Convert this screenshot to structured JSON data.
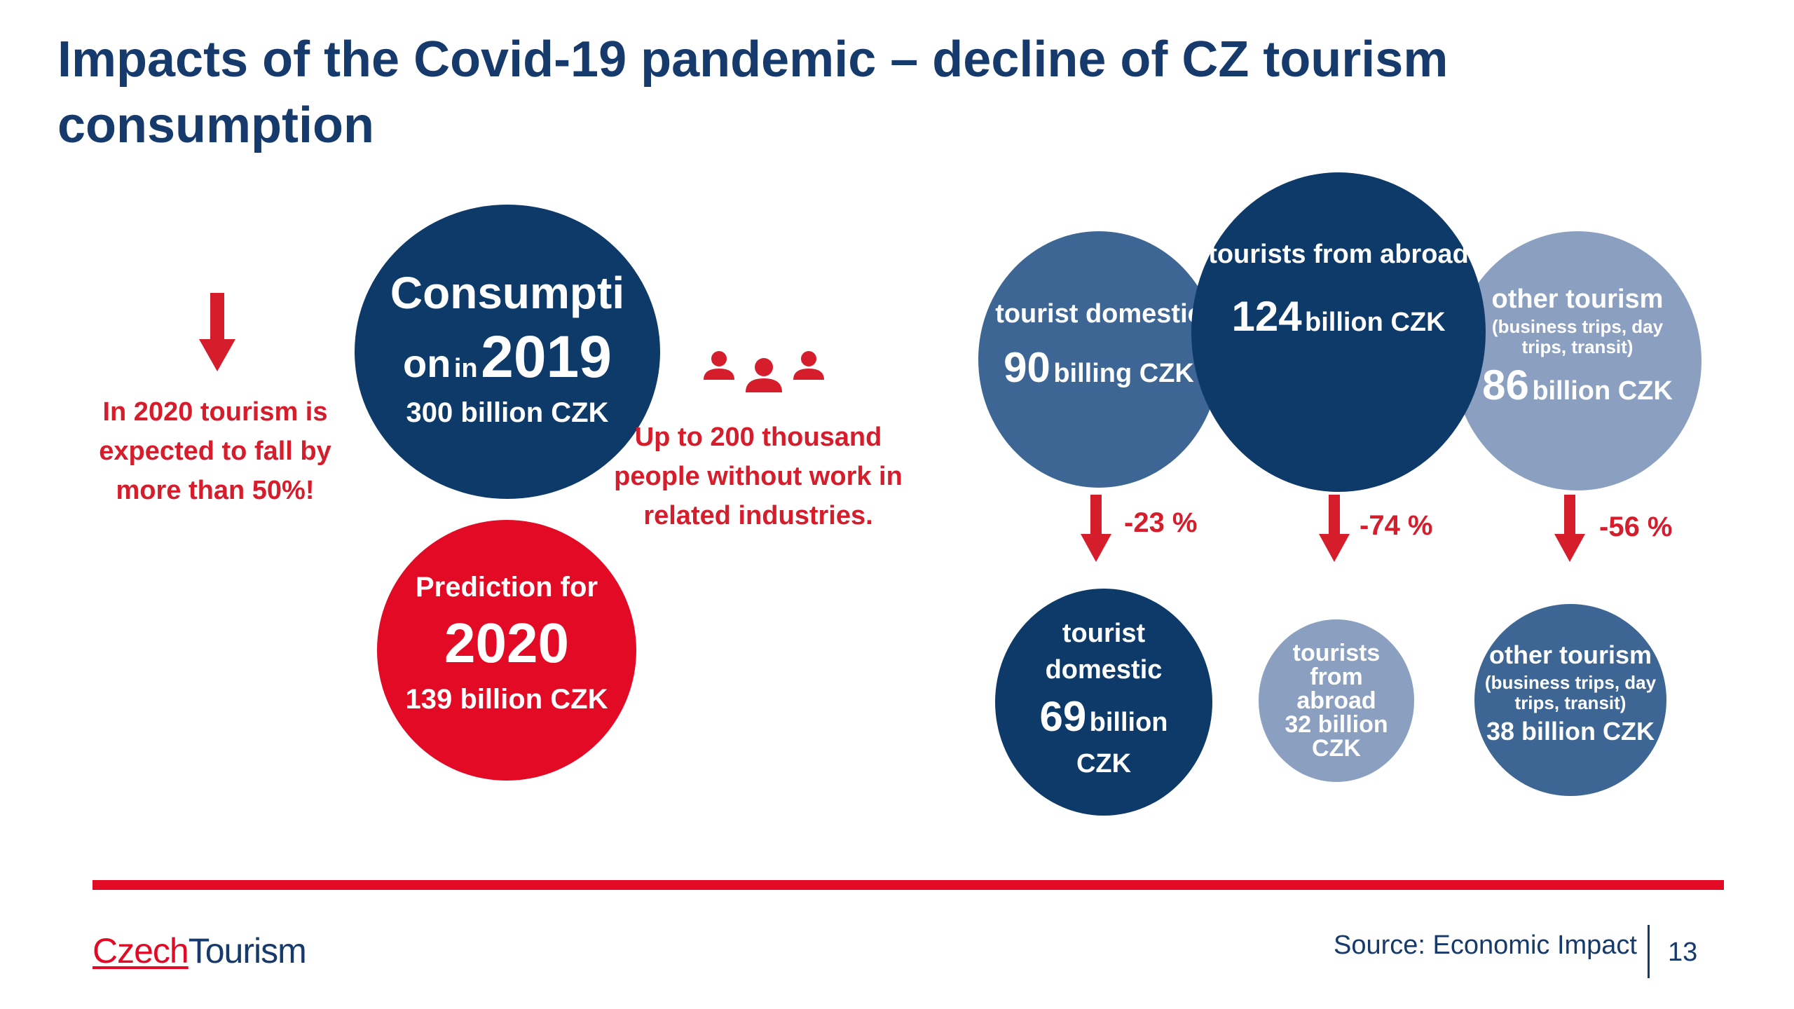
{
  "title": "Impacts of the Covid-19 pandemic – decline of CZ tourism consumption",
  "left": {
    "warning": "In 2020 tourism is expected to fall by more than 50%!",
    "consumption_circle": {
      "line1": "Consumpti",
      "line2_word": "on",
      "line2_in": "in",
      "line2_year": "2019",
      "amount": "300 billion CZK"
    },
    "prediction_circle": {
      "label": "Prediction for",
      "year": "2020",
      "amount": "139 billion CZK"
    },
    "jobs_text": "Up to 200 thousand people without work in related industries."
  },
  "right": {
    "top": [
      {
        "label": "tourist domestic",
        "number": "90",
        "unit": "billing CZK"
      },
      {
        "label": "tourists from abroad",
        "number": "124",
        "unit": "billion CZK"
      },
      {
        "label": "other tourism",
        "sub": "(business trips, day trips, transit)",
        "number": "86",
        "unit": "billion CZK"
      }
    ],
    "changes": [
      "-23 %",
      "-74 %",
      "-56 %"
    ],
    "bottom": [
      {
        "line1": "tourist",
        "line2": "domestic",
        "number": "69",
        "unit": "billion",
        "line4": "CZK"
      },
      {
        "line1": "tourists",
        "line2": "from",
        "line3": "abroad",
        "amount": "32 billion",
        "line5": "CZK"
      },
      {
        "label": "other tourism",
        "sub": "(business trips, day trips, transit)",
        "amount": "38 billion CZK"
      }
    ]
  },
  "footer": {
    "logo_part1": "Czech",
    "logo_part2": "Tourism",
    "source": "Source: Economic Impact",
    "page": "13"
  },
  "colors": {
    "navy": "#0e3a69",
    "mid_blue": "#3d6694",
    "light_blue": "#8ba0c0",
    "red": "#e20a24",
    "title_blue": "#153a6b"
  }
}
